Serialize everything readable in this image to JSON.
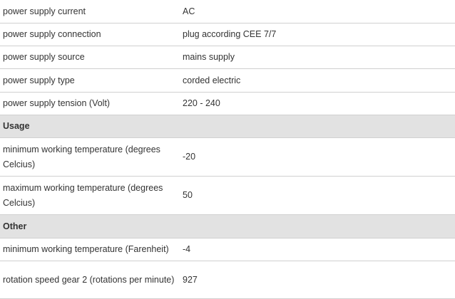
{
  "table": {
    "rows": [
      {
        "label": "power supply current",
        "value": "AC"
      },
      {
        "label": "power supply connection",
        "value": "plug according CEE 7/7"
      },
      {
        "label": "power supply source",
        "value": "mains supply"
      },
      {
        "label": "power supply type",
        "value": "corded electric"
      },
      {
        "label": "power supply tension (Volt)",
        "value": "220 - 240"
      },
      {
        "section": "Usage"
      },
      {
        "label": "minimum working temperature (degrees Celcius)",
        "value": "-20"
      },
      {
        "label": "maximum working temperature (degrees Celcius)",
        "value": "50"
      },
      {
        "section": "Other"
      },
      {
        "label": "minimum working temperature (Farenheit)",
        "value": "-4"
      },
      {
        "label": "rotation speed gear 2 (rotations per minute)",
        "value": "927"
      }
    ]
  }
}
